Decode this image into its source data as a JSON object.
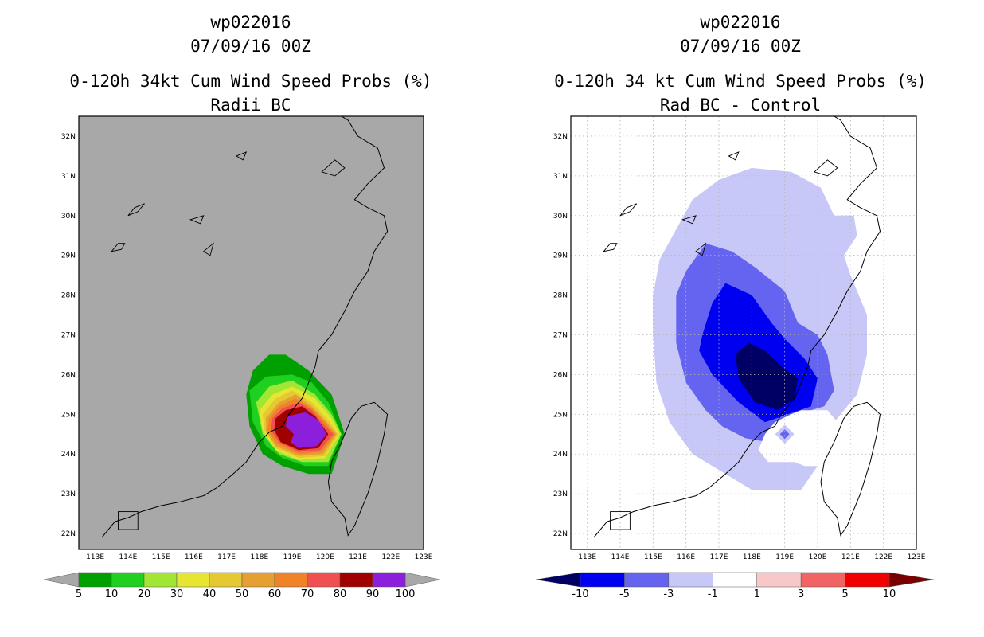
{
  "chart_data": [
    {
      "type": "heatmap",
      "title_lines": [
        "wp022016",
        "07/09/16 00Z"
      ],
      "title": "0-120h 34kt Cum Wind Speed Probs (%)",
      "subtitle": "Radii BC",
      "xlim": [
        112.5,
        123
      ],
      "ylim": [
        21.6,
        32.5
      ],
      "xticks": [
        "113E",
        "114E",
        "115E",
        "116E",
        "117E",
        "118E",
        "119E",
        "120E",
        "121E",
        "122E",
        "123E"
      ],
      "yticks": [
        "22N",
        "23N",
        "24N",
        "25N",
        "26N",
        "27N",
        "28N",
        "29N",
        "30N",
        "31N",
        "32N"
      ],
      "grid": false,
      "background": "#a8a8a8",
      "colorbar": {
        "labels": [
          "5",
          "10",
          "20",
          "30",
          "40",
          "50",
          "60",
          "70",
          "80",
          "90",
          "100"
        ],
        "colors": [
          "#00a000",
          "#20d020",
          "#a0e632",
          "#e6e632",
          "#e6c832",
          "#e6a032",
          "#f08228",
          "#f05050",
          "#a00000",
          "#8c1fdc"
        ]
      },
      "contours": [
        {
          "level": 5,
          "color": "#00a000",
          "polygon": [
            [
              117.8,
              26.1
            ],
            [
              118.3,
              26.5
            ],
            [
              118.8,
              26.5
            ],
            [
              119.5,
              26.1
            ],
            [
              120.2,
              25.5
            ],
            [
              120.6,
              24.5
            ],
            [
              120.2,
              23.5
            ],
            [
              119.5,
              23.5
            ],
            [
              118.7,
              23.7
            ],
            [
              118.1,
              24.0
            ],
            [
              117.7,
              24.7
            ],
            [
              117.6,
              25.5
            ]
          ]
        },
        {
          "level": 10,
          "color": "#20d020",
          "polygon": [
            [
              117.7,
              25.6
            ],
            [
              118.2,
              25.95
            ],
            [
              119.0,
              26.0
            ],
            [
              119.6,
              25.8
            ],
            [
              120.1,
              25.3
            ],
            [
              120.5,
              24.5
            ],
            [
              120.1,
              23.7
            ],
            [
              119.4,
              23.7
            ],
            [
              118.7,
              23.9
            ],
            [
              118.2,
              24.2
            ],
            [
              117.8,
              24.8
            ]
          ]
        },
        {
          "level": 20,
          "color": "#a0e632",
          "polygon": [
            [
              117.9,
              25.3
            ],
            [
              118.3,
              25.7
            ],
            [
              119.0,
              25.85
            ],
            [
              119.7,
              25.5
            ],
            [
              120.2,
              25.0
            ],
            [
              120.5,
              24.5
            ],
            [
              120.1,
              23.8
            ],
            [
              119.3,
              23.8
            ],
            [
              118.6,
              24.0
            ],
            [
              118.1,
              24.5
            ]
          ]
        },
        {
          "level": 30,
          "color": "#e6e632",
          "polygon": [
            [
              118.0,
              25.1
            ],
            [
              118.4,
              25.5
            ],
            [
              119.0,
              25.7
            ],
            [
              119.7,
              25.4
            ],
            [
              120.2,
              24.9
            ],
            [
              120.45,
              24.5
            ],
            [
              120.0,
              23.9
            ],
            [
              119.2,
              23.85
            ],
            [
              118.5,
              24.1
            ],
            [
              118.1,
              24.6
            ]
          ]
        },
        {
          "level": 40,
          "color": "#e6c832",
          "polygon": [
            [
              118.1,
              25.0
            ],
            [
              118.5,
              25.4
            ],
            [
              119.0,
              25.6
            ],
            [
              119.6,
              25.3
            ],
            [
              120.1,
              24.85
            ],
            [
              120.4,
              24.5
            ],
            [
              120.0,
              23.95
            ],
            [
              119.2,
              23.9
            ],
            [
              118.5,
              24.15
            ],
            [
              118.15,
              24.6
            ]
          ]
        },
        {
          "level": 50,
          "color": "#e6a032",
          "polygon": [
            [
              118.2,
              24.9
            ],
            [
              118.6,
              25.3
            ],
            [
              119.1,
              25.5
            ],
            [
              119.6,
              25.2
            ],
            [
              120.05,
              24.8
            ],
            [
              120.35,
              24.5
            ],
            [
              119.95,
              24.0
            ],
            [
              119.2,
              23.95
            ],
            [
              118.5,
              24.2
            ],
            [
              118.2,
              24.6
            ]
          ]
        },
        {
          "level": 60,
          "color": "#f08228",
          "polygon": [
            [
              118.3,
              24.9
            ],
            [
              118.6,
              25.2
            ],
            [
              119.1,
              25.4
            ],
            [
              119.6,
              25.15
            ],
            [
              120.0,
              24.8
            ],
            [
              120.3,
              24.5
            ],
            [
              119.9,
              24.05
            ],
            [
              119.2,
              24.0
            ],
            [
              118.55,
              24.25
            ],
            [
              118.25,
              24.6
            ]
          ]
        },
        {
          "level": 70,
          "color": "#f05050",
          "polygon": [
            [
              118.4,
              24.9
            ],
            [
              118.7,
              25.15
            ],
            [
              119.2,
              25.3
            ],
            [
              119.6,
              25.1
            ],
            [
              119.95,
              24.75
            ],
            [
              120.25,
              24.5
            ],
            [
              119.85,
              24.1
            ],
            [
              119.2,
              24.05
            ],
            [
              118.6,
              24.3
            ],
            [
              118.35,
              24.6
            ]
          ]
        },
        {
          "level": 80,
          "color": "#a00000",
          "polygon": [
            [
              118.5,
              24.9
            ],
            [
              118.8,
              25.1
            ],
            [
              119.3,
              25.2
            ],
            [
              119.7,
              24.95
            ],
            [
              120.1,
              24.5
            ],
            [
              119.8,
              24.15
            ],
            [
              119.2,
              24.1
            ],
            [
              118.65,
              24.3
            ],
            [
              118.45,
              24.6
            ]
          ]
        },
        {
          "level": 90,
          "color": "#8c1fdc",
          "polygon": [
            [
              118.85,
              24.95
            ],
            [
              119.4,
              25.05
            ],
            [
              119.8,
              24.85
            ],
            [
              120.05,
              24.5
            ],
            [
              119.75,
              24.2
            ],
            [
              119.2,
              24.15
            ],
            [
              118.95,
              24.3
            ],
            [
              119.05,
              24.5
            ],
            [
              118.8,
              24.7
            ]
          ]
        }
      ]
    },
    {
      "type": "heatmap",
      "title_lines": [
        "wp022016",
        "07/09/16 00Z"
      ],
      "title": "0-120h 34 kt Cum Wind Speed Probs (%)",
      "subtitle": "Rad BC - Control",
      "xlim": [
        112.5,
        123
      ],
      "ylim": [
        21.6,
        32.5
      ],
      "xticks": [
        "113E",
        "114E",
        "115E",
        "116E",
        "117E",
        "118E",
        "119E",
        "120E",
        "121E",
        "122E",
        "123E"
      ],
      "yticks": [
        "22N",
        "23N",
        "24N",
        "25N",
        "26N",
        "27N",
        "28N",
        "29N",
        "30N",
        "31N",
        "32N"
      ],
      "grid": true,
      "background": "#ffffff",
      "colorbar": {
        "labels": [
          "-10",
          "-5",
          "-3",
          "-1",
          "1",
          "3",
          "5",
          "10"
        ],
        "colors": [
          "#000064",
          "#0000f0",
          "#6464f0",
          "#c8c8f8",
          "#ffffff",
          "#f8c8c8",
          "#f06464",
          "#f00000",
          "#780000"
        ]
      },
      "contours": [
        {
          "level": -1,
          "color": "#c8c8f8",
          "polygon": [
            [
              115.6,
              29.5
            ],
            [
              116.2,
              30.4
            ],
            [
              117.0,
              30.9
            ],
            [
              118.0,
              31.2
            ],
            [
              119.2,
              31.1
            ],
            [
              120.1,
              30.7
            ],
            [
              120.5,
              30.0
            ],
            [
              121.1,
              30.0
            ],
            [
              121.2,
              29.5
            ],
            [
              120.8,
              29.0
            ],
            [
              121.0,
              28.5
            ],
            [
              121.5,
              27.5
            ],
            [
              121.5,
              26.5
            ],
            [
              121.2,
              25.5
            ],
            [
              120.5,
              24.8
            ],
            [
              120.3,
              24.2
            ],
            [
              120.0,
              23.7
            ],
            [
              119.5,
              23.1
            ],
            [
              118.0,
              23.1
            ],
            [
              117.2,
              23.5
            ],
            [
              116.2,
              24.0
            ],
            [
              115.5,
              24.8
            ],
            [
              115.1,
              25.8
            ],
            [
              115.0,
              27.0
            ],
            [
              115.0,
              28.0
            ],
            [
              115.2,
              28.9
            ]
          ]
        },
        {
          "level": -3,
          "color": "#6464f0",
          "polygon": [
            [
              115.7,
              28.0
            ],
            [
              116.0,
              28.6
            ],
            [
              116.6,
              29.3
            ],
            [
              117.4,
              29.1
            ],
            [
              118.1,
              28.7
            ],
            [
              119.0,
              28.1
            ],
            [
              119.4,
              27.3
            ],
            [
              120.0,
              27.0
            ],
            [
              120.3,
              26.5
            ],
            [
              120.5,
              25.6
            ],
            [
              120.2,
              25.2
            ],
            [
              119.8,
              25.1
            ],
            [
              119.2,
              24.8
            ],
            [
              118.9,
              24.4
            ],
            [
              118.5,
              24.3
            ],
            [
              117.8,
              24.4
            ],
            [
              117.1,
              24.7
            ],
            [
              116.6,
              25.1
            ],
            [
              116.0,
              25.8
            ],
            [
              115.7,
              26.8
            ]
          ]
        },
        {
          "level": -5,
          "color": "#0000f0",
          "polygon": [
            [
              116.5,
              27.0
            ],
            [
              116.8,
              27.8
            ],
            [
              117.2,
              28.3
            ],
            [
              118.0,
              28.0
            ],
            [
              118.6,
              27.3
            ],
            [
              119.0,
              26.9
            ],
            [
              119.6,
              26.4
            ],
            [
              120.0,
              25.9
            ],
            [
              119.8,
              25.2
            ],
            [
              119.1,
              25.0
            ],
            [
              118.4,
              24.8
            ],
            [
              117.6,
              25.3
            ],
            [
              116.8,
              26.0
            ],
            [
              116.4,
              26.6
            ]
          ]
        },
        {
          "level": -10,
          "color": "#000064",
          "polygon": [
            [
              117.5,
              26.5
            ],
            [
              117.9,
              26.8
            ],
            [
              118.4,
              26.6
            ],
            [
              118.9,
              26.2
            ],
            [
              119.4,
              25.9
            ],
            [
              119.3,
              25.4
            ],
            [
              118.8,
              25.1
            ],
            [
              118.1,
              25.3
            ],
            [
              117.6,
              25.9
            ]
          ]
        }
      ],
      "positive_regions": [
        {
          "level": 1,
          "color": "#ffffff",
          "polygon": [
            [
              119.2,
              25.0
            ],
            [
              119.5,
              25.1
            ],
            [
              120.3,
              25.1
            ],
            [
              120.7,
              24.7
            ],
            [
              120.6,
              24.3
            ],
            [
              120.4,
              24.0
            ],
            [
              120.0,
              23.7
            ],
            [
              119.6,
              23.7
            ],
            [
              119.3,
              23.8
            ],
            [
              118.5,
              23.8
            ],
            [
              118.2,
              24.1
            ],
            [
              118.4,
              24.5
            ],
            [
              118.7,
              24.8
            ]
          ]
        }
      ],
      "spot": {
        "level": -5,
        "color": "#6464f0",
        "center": [
          119.0,
          24.5
        ]
      }
    }
  ]
}
